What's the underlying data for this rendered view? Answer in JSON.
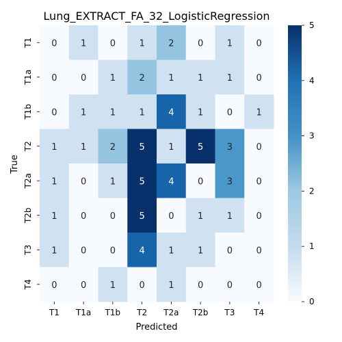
{
  "chart_data": {
    "type": "heatmap",
    "title": "Lung_EXTRACT_FA_32_LogisticRegression",
    "xlabel": "Predicted",
    "ylabel": "True",
    "x_categories": [
      "T1",
      "T1a",
      "T1b",
      "T2",
      "T2a",
      "T2b",
      "T3",
      "T4"
    ],
    "y_categories": [
      "T1",
      "T1a",
      "T1b",
      "T2",
      "T2a",
      "T2b",
      "T3",
      "T4"
    ],
    "values": [
      [
        0,
        1,
        0,
        1,
        2,
        0,
        1,
        0
      ],
      [
        0,
        0,
        1,
        2,
        1,
        1,
        1,
        0
      ],
      [
        0,
        1,
        1,
        1,
        4,
        1,
        0,
        1
      ],
      [
        1,
        1,
        2,
        5,
        1,
        5,
        3,
        0
      ],
      [
        1,
        0,
        1,
        5,
        4,
        0,
        3,
        0
      ],
      [
        1,
        0,
        0,
        5,
        0,
        1,
        1,
        0
      ],
      [
        1,
        0,
        0,
        4,
        1,
        1,
        0,
        0
      ],
      [
        0,
        0,
        1,
        0,
        1,
        0,
        0,
        0
      ]
    ],
    "colorscale": "Blues",
    "color_range": [
      0,
      5
    ],
    "colorbar_ticks": [
      0,
      1,
      2,
      3,
      4,
      5
    ]
  }
}
